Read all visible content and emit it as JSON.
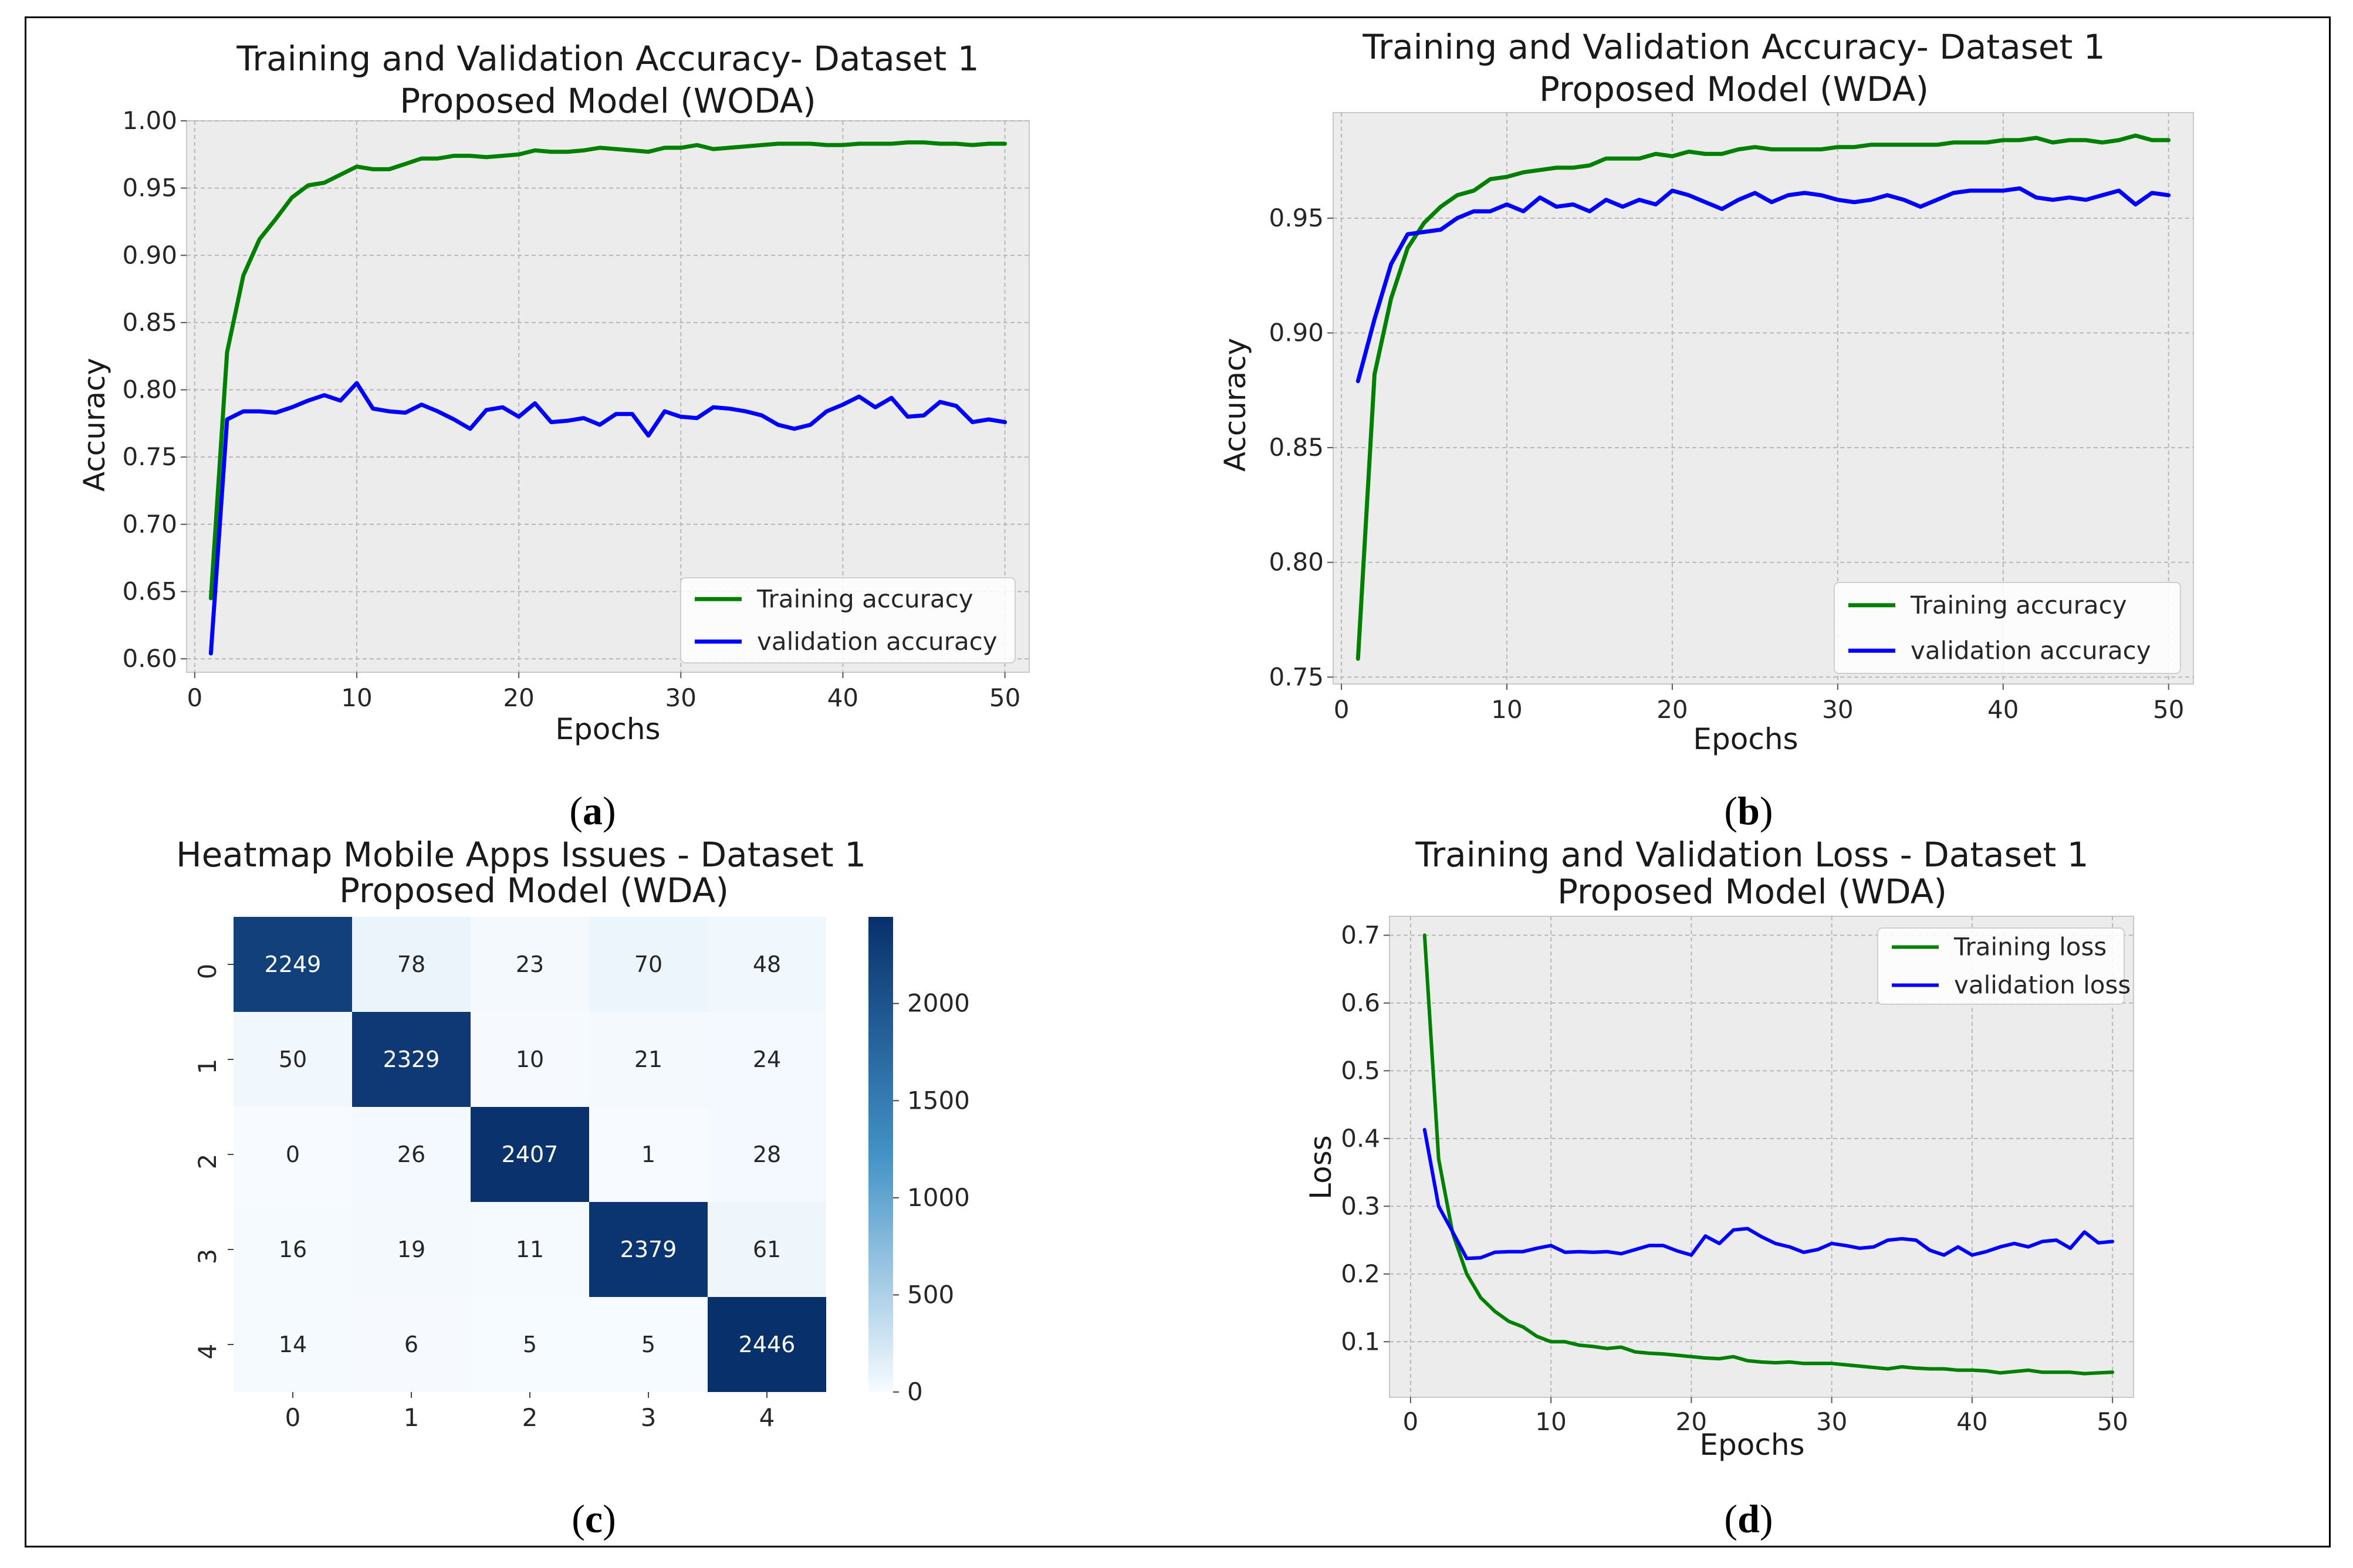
{
  "figure": {
    "captions": [
      "a",
      "b",
      "c",
      "d"
    ]
  },
  "chart_data": [
    {
      "id": "a",
      "type": "line",
      "title": "Training and Validation Accuracy- Dataset 1",
      "subtitle": "Proposed Model (WODA)",
      "xlabel": "Epochs",
      "ylabel": "Accuracy",
      "xlim": [
        -0.5,
        51.5
      ],
      "ylim": [
        0.59,
        1.0
      ],
      "xticks": [
        0,
        10,
        20,
        30,
        40,
        50
      ],
      "yticks": [
        0.6,
        0.65,
        0.7,
        0.75,
        0.8,
        0.85,
        0.9,
        0.95,
        1.0
      ],
      "ytick_labels": [
        "0.60",
        "0.65",
        "0.70",
        "0.75",
        "0.80",
        "0.85",
        "0.90",
        "0.95",
        "1.00"
      ],
      "legend_position": "lower-right",
      "series": [
        {
          "name": "Training accuracy",
          "color": "#008000",
          "x": [
            1,
            2,
            3,
            4,
            5,
            6,
            7,
            8,
            9,
            10,
            11,
            12,
            13,
            14,
            15,
            16,
            17,
            18,
            19,
            20,
            21,
            22,
            23,
            24,
            25,
            26,
            27,
            28,
            29,
            30,
            31,
            32,
            33,
            34,
            35,
            36,
            37,
            38,
            39,
            40,
            41,
            42,
            43,
            44,
            45,
            46,
            47,
            48,
            49,
            50
          ],
          "values": [
            0.645,
            0.828,
            0.885,
            0.912,
            0.927,
            0.943,
            0.952,
            0.954,
            0.96,
            0.966,
            0.964,
            0.964,
            0.968,
            0.972,
            0.972,
            0.974,
            0.974,
            0.973,
            0.974,
            0.975,
            0.978,
            0.977,
            0.977,
            0.978,
            0.98,
            0.979,
            0.978,
            0.977,
            0.98,
            0.98,
            0.982,
            0.979,
            0.98,
            0.981,
            0.982,
            0.983,
            0.983,
            0.983,
            0.982,
            0.982,
            0.983,
            0.983,
            0.983,
            0.984,
            0.984,
            0.983,
            0.983,
            0.982,
            0.983,
            0.983
          ]
        },
        {
          "name": "validation accuracy",
          "color": "#0000ff",
          "x": [
            1,
            2,
            3,
            4,
            5,
            6,
            7,
            8,
            9,
            10,
            11,
            12,
            13,
            14,
            15,
            16,
            17,
            18,
            19,
            20,
            21,
            22,
            23,
            24,
            25,
            26,
            27,
            28,
            29,
            30,
            31,
            32,
            33,
            34,
            35,
            36,
            37,
            38,
            39,
            40,
            41,
            42,
            43,
            44,
            45,
            46,
            47,
            48,
            49,
            50
          ],
          "values": [
            0.604,
            0.778,
            0.784,
            0.784,
            0.783,
            0.787,
            0.792,
            0.796,
            0.792,
            0.805,
            0.786,
            0.784,
            0.783,
            0.789,
            0.784,
            0.778,
            0.771,
            0.785,
            0.787,
            0.78,
            0.79,
            0.776,
            0.777,
            0.779,
            0.774,
            0.782,
            0.782,
            0.766,
            0.784,
            0.78,
            0.779,
            0.787,
            0.786,
            0.784,
            0.781,
            0.774,
            0.771,
            0.774,
            0.784,
            0.789,
            0.795,
            0.787,
            0.794,
            0.78,
            0.781,
            0.791,
            0.788,
            0.776,
            0.778,
            0.776
          ]
        }
      ]
    },
    {
      "id": "b",
      "type": "line",
      "title": "Training and Validation Accuracy- Dataset 1",
      "subtitle": "Proposed Model (WDA)",
      "xlabel": "Epochs",
      "ylabel": "Accuracy",
      "xlim": [
        -0.5,
        51.5
      ],
      "ylim": [
        0.747,
        0.996
      ],
      "xticks": [
        0,
        10,
        20,
        30,
        40,
        50
      ],
      "yticks": [
        0.75,
        0.8,
        0.85,
        0.9,
        0.95
      ],
      "ytick_labels": [
        "0.75",
        "0.80",
        "0.85",
        "0.90",
        "0.95"
      ],
      "legend_position": "lower-right",
      "series": [
        {
          "name": "Training accuracy",
          "color": "#008000",
          "x": [
            1,
            2,
            3,
            4,
            5,
            6,
            7,
            8,
            9,
            10,
            11,
            12,
            13,
            14,
            15,
            16,
            17,
            18,
            19,
            20,
            21,
            22,
            23,
            24,
            25,
            26,
            27,
            28,
            29,
            30,
            31,
            32,
            33,
            34,
            35,
            36,
            37,
            38,
            39,
            40,
            41,
            42,
            43,
            44,
            45,
            46,
            47,
            48,
            49,
            50
          ],
          "values": [
            0.758,
            0.882,
            0.915,
            0.937,
            0.948,
            0.955,
            0.96,
            0.962,
            0.967,
            0.968,
            0.97,
            0.971,
            0.972,
            0.972,
            0.973,
            0.976,
            0.976,
            0.976,
            0.978,
            0.977,
            0.979,
            0.978,
            0.978,
            0.98,
            0.981,
            0.98,
            0.98,
            0.98,
            0.98,
            0.981,
            0.981,
            0.982,
            0.982,
            0.982,
            0.982,
            0.982,
            0.983,
            0.983,
            0.983,
            0.984,
            0.984,
            0.985,
            0.983,
            0.984,
            0.984,
            0.983,
            0.984,
            0.986,
            0.984,
            0.984
          ]
        },
        {
          "name": "validation accuracy",
          "color": "#0000ff",
          "x": [
            1,
            2,
            3,
            4,
            5,
            6,
            7,
            8,
            9,
            10,
            11,
            12,
            13,
            14,
            15,
            16,
            17,
            18,
            19,
            20,
            21,
            22,
            23,
            24,
            25,
            26,
            27,
            28,
            29,
            30,
            31,
            32,
            33,
            34,
            35,
            36,
            37,
            38,
            39,
            40,
            41,
            42,
            43,
            44,
            45,
            46,
            47,
            48,
            49,
            50
          ],
          "values": [
            0.879,
            0.906,
            0.93,
            0.943,
            0.944,
            0.945,
            0.95,
            0.953,
            0.953,
            0.956,
            0.953,
            0.959,
            0.955,
            0.956,
            0.953,
            0.958,
            0.955,
            0.958,
            0.956,
            0.962,
            0.96,
            0.957,
            0.954,
            0.958,
            0.961,
            0.957,
            0.96,
            0.961,
            0.96,
            0.958,
            0.957,
            0.958,
            0.96,
            0.958,
            0.955,
            0.958,
            0.961,
            0.962,
            0.962,
            0.962,
            0.963,
            0.959,
            0.958,
            0.959,
            0.958,
            0.96,
            0.962,
            0.956,
            0.961,
            0.96
          ]
        }
      ]
    },
    {
      "id": "c",
      "type": "heatmap",
      "title": "Heatmap  Mobile Apps Issues - Dataset 1",
      "subtitle": "Proposed Model (WDA)",
      "row_labels": [
        "0",
        "1",
        "2",
        "3",
        "4"
      ],
      "col_labels": [
        "0",
        "1",
        "2",
        "3",
        "4"
      ],
      "matrix": [
        [
          2249,
          78,
          23,
          70,
          48
        ],
        [
          50,
          2329,
          10,
          21,
          24
        ],
        [
          0,
          26,
          2407,
          1,
          28
        ],
        [
          16,
          19,
          11,
          2379,
          61
        ],
        [
          14,
          6,
          5,
          5,
          2446
        ]
      ],
      "colorbar": {
        "min": 0,
        "max": 2446,
        "ticks": [
          0,
          500,
          1000,
          1500,
          2000
        ],
        "tick_labels": [
          "0",
          "500",
          "1000",
          "1500",
          "2000"
        ],
        "colormap": "Blues"
      }
    },
    {
      "id": "d",
      "type": "line",
      "title": "Training and Validation Loss - Dataset 1",
      "subtitle": "Proposed Model (WDA)",
      "xlabel": "Epochs",
      "ylabel": "Loss",
      "xlim": [
        -1.5,
        51.5
      ],
      "ylim": [
        0.018,
        0.728
      ],
      "xticks": [
        0,
        10,
        20,
        30,
        40,
        50
      ],
      "yticks": [
        0.1,
        0.2,
        0.3,
        0.4,
        0.5,
        0.6,
        0.7
      ],
      "ytick_labels": [
        "0.1",
        "0.2",
        "0.3",
        "0.4",
        "0.5",
        "0.6",
        "0.7"
      ],
      "legend_position": "upper-right",
      "series": [
        {
          "name": "Training loss",
          "color": "#008000",
          "x": [
            1,
            2,
            3,
            4,
            5,
            6,
            7,
            8,
            9,
            10,
            11,
            12,
            13,
            14,
            15,
            16,
            17,
            18,
            19,
            20,
            21,
            22,
            23,
            24,
            25,
            26,
            27,
            28,
            29,
            30,
            31,
            32,
            33,
            34,
            35,
            36,
            37,
            38,
            39,
            40,
            41,
            42,
            43,
            44,
            45,
            46,
            47,
            48,
            49,
            50
          ],
          "values": [
            0.7,
            0.37,
            0.26,
            0.2,
            0.165,
            0.145,
            0.13,
            0.122,
            0.108,
            0.1,
            0.1,
            0.095,
            0.093,
            0.09,
            0.092,
            0.085,
            0.083,
            0.082,
            0.08,
            0.078,
            0.076,
            0.075,
            0.078,
            0.072,
            0.07,
            0.069,
            0.07,
            0.068,
            0.068,
            0.068,
            0.066,
            0.064,
            0.062,
            0.06,
            0.063,
            0.061,
            0.06,
            0.06,
            0.058,
            0.058,
            0.057,
            0.054,
            0.056,
            0.058,
            0.055,
            0.055,
            0.055,
            0.053,
            0.054,
            0.055
          ]
        },
        {
          "name": "validation loss",
          "color": "#0000ff",
          "x": [
            1,
            2,
            3,
            4,
            5,
            6,
            7,
            8,
            9,
            10,
            11,
            12,
            13,
            14,
            15,
            16,
            17,
            18,
            19,
            20,
            21,
            22,
            23,
            24,
            25,
            26,
            27,
            28,
            29,
            30,
            31,
            32,
            33,
            34,
            35,
            36,
            37,
            38,
            39,
            40,
            41,
            42,
            43,
            44,
            45,
            46,
            47,
            48,
            49,
            50
          ],
          "values": [
            0.413,
            0.3,
            0.262,
            0.223,
            0.224,
            0.232,
            0.233,
            0.233,
            0.238,
            0.242,
            0.232,
            0.233,
            0.232,
            0.233,
            0.23,
            0.236,
            0.242,
            0.242,
            0.234,
            0.228,
            0.256,
            0.245,
            0.265,
            0.267,
            0.255,
            0.245,
            0.24,
            0.232,
            0.236,
            0.245,
            0.242,
            0.238,
            0.24,
            0.25,
            0.252,
            0.25,
            0.235,
            0.228,
            0.24,
            0.228,
            0.233,
            0.24,
            0.245,
            0.24,
            0.248,
            0.25,
            0.238,
            0.262,
            0.246,
            0.248
          ]
        }
      ]
    }
  ]
}
